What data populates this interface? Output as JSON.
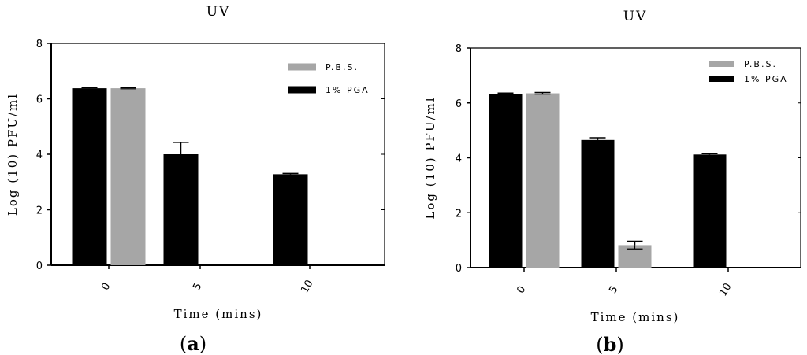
{
  "chart_data": [
    {
      "type": "bar",
      "title": "UV",
      "xlabel": "Time (mins)",
      "ylabel": "Log (10) PFU/ml",
      "panel_label": "a",
      "categories": [
        "0",
        "5",
        "10"
      ],
      "ylim": [
        0,
        8
      ],
      "yticks": [
        "0",
        "2",
        "4",
        "6",
        "8"
      ],
      "legend_position": "top-right",
      "series": [
        {
          "name": "1% PGA",
          "color": "#000000",
          "values": [
            6.38,
            4.0,
            3.28
          ],
          "errors": [
            0.02,
            0.43,
            0.03
          ]
        },
        {
          "name": "P.B.S.",
          "color": "#a6a6a6",
          "values": [
            6.38,
            null,
            null
          ],
          "errors": [
            0.02,
            null,
            null
          ]
        }
      ],
      "legend_order": [
        "P.B.S.",
        "1% PGA"
      ]
    },
    {
      "type": "bar",
      "title": "UV",
      "xlabel": "Time (mins)",
      "ylabel": "Log (10) PFU/ml",
      "panel_label": "b",
      "categories": [
        "0",
        "5",
        "10"
      ],
      "ylim": [
        0,
        8
      ],
      "yticks": [
        "0",
        "2",
        "4",
        "6",
        "8"
      ],
      "legend_position": "top-right",
      "series": [
        {
          "name": "1% PGA",
          "color": "#000000",
          "values": [
            6.33,
            4.65,
            4.12
          ],
          "errors": [
            0.03,
            0.08,
            0.03
          ]
        },
        {
          "name": "P.B.S.",
          "color": "#a6a6a6",
          "values": [
            6.35,
            0.82,
            null
          ],
          "errors": [
            0.03,
            0.14,
            null
          ]
        }
      ],
      "legend_order": [
        "P.B.S.",
        "1% PGA"
      ]
    }
  ]
}
